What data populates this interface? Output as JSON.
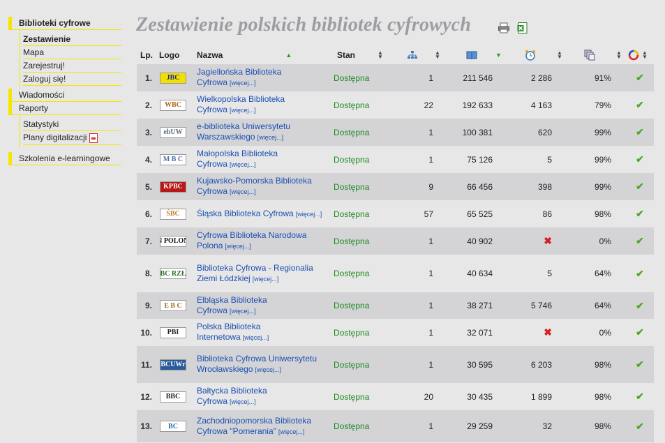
{
  "sidebar": {
    "s1": "Biblioteki cyfrowe",
    "s1_items": [
      "Zestawienie",
      "Mapa",
      "Zarejestruj!",
      "Zaloguj się!"
    ],
    "s2": "Wiadomości",
    "s3": "Raporty",
    "s3_items": [
      "Statystyki",
      "Plany digitalizacji"
    ],
    "s4": "Szkolenia e-learningowe"
  },
  "title": "Zestawienie polskich bibliotek cyfrowych",
  "headers": {
    "lp": "Lp.",
    "logo": "Logo",
    "name": "Nazwa",
    "stan": "Stan"
  },
  "more_label": "[więcej...]",
  "rows": [
    {
      "lp": "1.",
      "logo": "JBC",
      "logo_bg": "#f4e000",
      "logo_fg": "#1a2a8a",
      "name": "Jagiellońska Biblioteka Cyfrowa",
      "stan": "Dostępna",
      "n1": "1",
      "n2": "211 546",
      "n3": "2 286",
      "n4": "91%",
      "h": 39
    },
    {
      "lp": "2.",
      "logo": "WBC",
      "logo_bg": "#ffffff",
      "logo_fg": "#b06010",
      "name": "Wielkopolska Biblioteka Cyfrowa",
      "stan": "Dostępna",
      "n1": "22",
      "n2": "192 633",
      "n3": "4 163",
      "n4": "79%",
      "h": 39
    },
    {
      "lp": "3.",
      "logo": "ebUW",
      "logo_bg": "#ffffff",
      "logo_fg": "#5a6a80",
      "name": "e-biblioteka Uniwersytetu Warszawskiego",
      "stan": "Dostępna",
      "n1": "1",
      "n2": "100 381",
      "n3": "620",
      "n4": "99%",
      "h": 39
    },
    {
      "lp": "4.",
      "logo": "M B C",
      "logo_bg": "#ffffff",
      "logo_fg": "#4a70a8",
      "name": "Małopolska Biblioteka Cyfrowa",
      "stan": "Dostępna",
      "n1": "1",
      "n2": "75 126",
      "n3": "5",
      "n4": "99%",
      "h": 39
    },
    {
      "lp": "5.",
      "logo": "KPBC",
      "logo_bg": "#b81818",
      "logo_fg": "#ffffff",
      "name": "Kujawsko-Pomorska Biblioteka Cyfrowa",
      "stan": "Dostępna",
      "n1": "9",
      "n2": "66 456",
      "n3": "398",
      "n4": "99%",
      "h": 39
    },
    {
      "lp": "6.",
      "logo": "ŚBC",
      "logo_bg": "#ffffff",
      "logo_fg": "#c08030",
      "name": "Śląska Biblioteka Cyfrowa",
      "stan": "Dostępna",
      "n1": "57",
      "n2": "65 525",
      "n3": "86",
      "n4": "98%",
      "h": 39
    },
    {
      "lp": "7.",
      "logo": "BN POLONA",
      "logo_bg": "#ffffff",
      "logo_fg": "#111111",
      "name": "Cyfrowa Biblioteka Narodowa Polona",
      "stan": "Dostępna",
      "n1": "1",
      "n2": "40 902",
      "n3": "",
      "n3_cross": true,
      "n4": "0%",
      "h": 39
    },
    {
      "lp": "8.",
      "logo": "BC RZŁ",
      "logo_bg": "#ffffff",
      "logo_fg": "#2a6a2a",
      "name": "Biblioteka Cyfrowa - Regionalia Ziemi Łódzkiej",
      "stan": "Dostępna",
      "n1": "1",
      "n2": "40 634",
      "n3": "5",
      "n4": "64%",
      "h": 54
    },
    {
      "lp": "9.",
      "logo": "E B C",
      "logo_bg": "#ffffff",
      "logo_fg": "#a07020",
      "name": "Elbląska Biblioteka Cyfrowa",
      "stan": "Dostępna",
      "n1": "1",
      "n2": "38 271",
      "n3": "5 746",
      "n4": "64%",
      "h": 38
    },
    {
      "lp": "10.",
      "logo": "PBI",
      "logo_bg": "#ffffff",
      "logo_fg": "#222222",
      "name": "Polska Biblioteka Internetowa",
      "stan": "Dostępna",
      "n1": "1",
      "n2": "32 071",
      "n3": "",
      "n3_cross": true,
      "n4": "0%",
      "h": 39
    },
    {
      "lp": "11.",
      "logo": "BCUWr",
      "logo_bg": "#2a5a9a",
      "logo_fg": "#ffffff",
      "name": "Biblioteka Cyfrowa Uniwersytetu Wrocławskiego",
      "stan": "Dostępna",
      "n1": "1",
      "n2": "30 595",
      "n3": "6 203",
      "n4": "98%",
      "h": 53
    },
    {
      "lp": "12.",
      "logo": "BBC",
      "logo_bg": "#ffffff",
      "logo_fg": "#222222",
      "name": "Bałtycka Biblioteka Cyfrowa",
      "stan": "Dostępna",
      "n1": "20",
      "n2": "30 435",
      "n3": "1 899",
      "n4": "98%",
      "h": 39
    },
    {
      "lp": "13.",
      "logo": "BC",
      "logo_bg": "#ffffff",
      "logo_fg": "#2a6aa8",
      "name": "Zachodniopomorska Biblioteka Cyfrowa \"Pomerania\"",
      "stan": "Dostępna",
      "n1": "1",
      "n2": "29 259",
      "n3": "32",
      "n4": "98%",
      "h": 46
    }
  ]
}
